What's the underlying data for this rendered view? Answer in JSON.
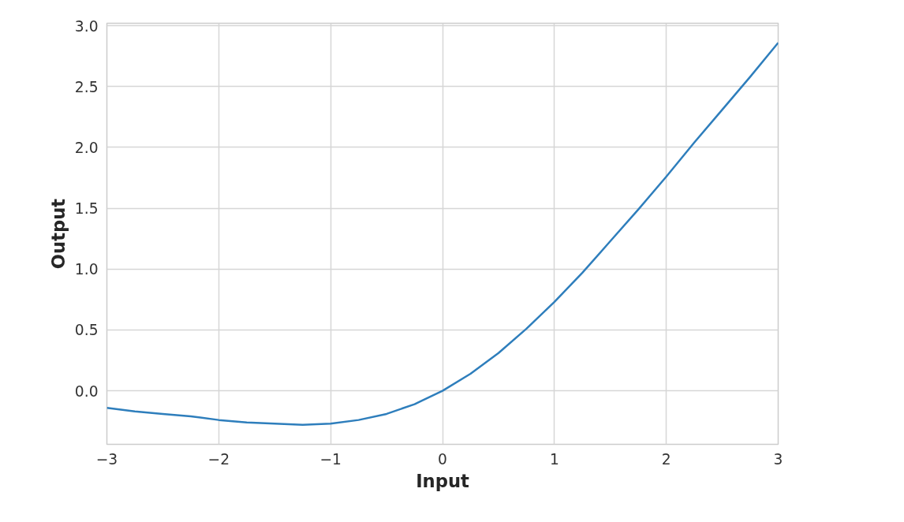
{
  "chart_data": {
    "type": "line",
    "xlabel": "Input",
    "ylabel": "Output",
    "x": [
      -3,
      -2.75,
      -2.5,
      -2.25,
      -2,
      -1.75,
      -1.5,
      -1.25,
      -1,
      -0.75,
      -0.5,
      -0.25,
      0,
      0.25,
      0.5,
      0.75,
      1,
      1.25,
      1.5,
      1.75,
      2,
      2.25,
      2.5,
      2.75,
      3
    ],
    "series": [
      {
        "color": "#2e7ebc",
        "values": [
          -0.14,
          -0.17,
          -0.19,
          -0.21,
          -0.24,
          -0.26,
          -0.27,
          -0.28,
          -0.27,
          -0.24,
          -0.19,
          -0.11,
          0,
          0.14,
          0.31,
          0.51,
          0.73,
          0.97,
          1.23,
          1.49,
          1.76,
          2.04,
          2.31,
          2.58,
          2.86
        ]
      }
    ],
    "xlim": [
      -3,
      3
    ],
    "ylim": [
      -0.44,
      3.02
    ],
    "xticks": [
      {
        "value": -3,
        "label": "−3"
      },
      {
        "value": -2,
        "label": "−2"
      },
      {
        "value": -1,
        "label": "−1"
      },
      0,
      1,
      2,
      3
    ],
    "yticks": [
      {
        "value": 0,
        "label": "0.0"
      },
      0.5,
      {
        "value": 1,
        "label": "1.0"
      },
      1.5,
      {
        "value": 2,
        "label": "2.0"
      },
      2.5,
      {
        "value": 3,
        "label": "3.0"
      }
    ],
    "grid": true,
    "marker": "none",
    "line_style": "solid"
  }
}
